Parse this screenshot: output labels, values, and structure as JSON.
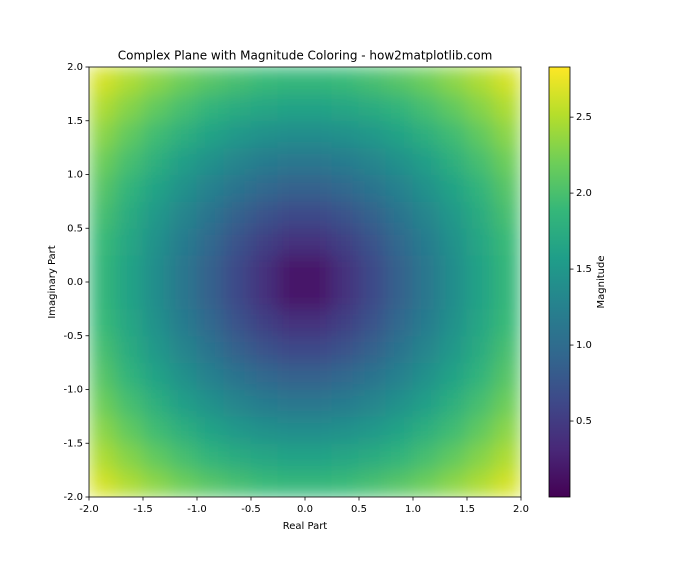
{
  "chart_data": {
    "type": "heatmap",
    "title": "Complex Plane with Magnitude Coloring - how2matplotlib.com",
    "xlabel": "Real Part",
    "ylabel": "Imaginary Part",
    "x": [
      -1.875,
      -1.625,
      -1.375,
      -1.125,
      -0.875,
      -0.625,
      -0.375,
      -0.125,
      0.125,
      0.375,
      0.625,
      0.875,
      1.125,
      1.375,
      1.625,
      1.875
    ],
    "y": [
      -1.875,
      -1.625,
      -1.375,
      -1.125,
      -0.875,
      -0.625,
      -0.375,
      -0.125,
      0.125,
      0.375,
      0.625,
      0.875,
      1.125,
      1.375,
      1.625,
      1.875
    ],
    "z": [
      [
        2.65,
        2.48,
        2.33,
        2.19,
        2.07,
        1.98,
        1.91,
        1.88,
        1.88,
        1.91,
        1.98,
        2.07,
        2.19,
        2.33,
        2.48,
        2.65
      ],
      [
        2.48,
        2.3,
        2.13,
        1.98,
        1.85,
        1.74,
        1.67,
        1.63,
        1.63,
        1.67,
        1.74,
        1.85,
        1.98,
        2.13,
        2.3,
        2.48
      ],
      [
        2.33,
        2.13,
        1.94,
        1.78,
        1.63,
        1.51,
        1.43,
        1.38,
        1.38,
        1.43,
        1.51,
        1.63,
        1.78,
        1.94,
        2.13,
        2.33
      ],
      [
        2.19,
        1.98,
        1.78,
        1.59,
        1.43,
        1.29,
        1.19,
        1.13,
        1.13,
        1.19,
        1.29,
        1.43,
        1.59,
        1.78,
        1.98,
        2.19
      ],
      [
        2.07,
        1.85,
        1.63,
        1.43,
        1.24,
        1.08,
        0.95,
        0.88,
        0.88,
        0.95,
        1.08,
        1.24,
        1.43,
        1.63,
        1.85,
        2.07
      ],
      [
        1.98,
        1.74,
        1.51,
        1.29,
        1.08,
        0.88,
        0.73,
        0.64,
        0.64,
        0.73,
        0.88,
        1.08,
        1.29,
        1.51,
        1.74,
        1.98
      ],
      [
        1.91,
        1.67,
        1.43,
        1.19,
        0.95,
        0.73,
        0.53,
        0.4,
        0.4,
        0.53,
        0.73,
        0.95,
        1.19,
        1.43,
        1.67,
        1.91
      ],
      [
        1.88,
        1.63,
        1.38,
        1.13,
        0.88,
        0.64,
        0.4,
        0.18,
        0.18,
        0.4,
        0.64,
        0.88,
        1.13,
        1.38,
        1.63,
        1.88
      ],
      [
        1.88,
        1.63,
        1.38,
        1.13,
        0.88,
        0.64,
        0.4,
        0.18,
        0.18,
        0.4,
        0.64,
        0.88,
        1.13,
        1.38,
        1.63,
        1.88
      ],
      [
        1.91,
        1.67,
        1.43,
        1.19,
        0.95,
        0.73,
        0.53,
        0.4,
        0.4,
        0.53,
        0.73,
        0.95,
        1.19,
        1.43,
        1.67,
        1.91
      ],
      [
        1.98,
        1.74,
        1.51,
        1.29,
        1.08,
        0.88,
        0.73,
        0.64,
        0.64,
        0.73,
        0.88,
        1.08,
        1.29,
        1.51,
        1.74,
        1.98
      ],
      [
        2.07,
        1.85,
        1.63,
        1.43,
        1.24,
        1.08,
        0.95,
        0.88,
        0.88,
        0.95,
        1.08,
        1.24,
        1.43,
        1.63,
        1.85,
        2.07
      ],
      [
        2.19,
        1.98,
        1.78,
        1.59,
        1.43,
        1.29,
        1.19,
        1.13,
        1.13,
        1.19,
        1.29,
        1.43,
        1.59,
        1.78,
        1.98,
        2.19
      ],
      [
        2.33,
        2.13,
        1.94,
        1.78,
        1.63,
        1.51,
        1.43,
        1.38,
        1.38,
        1.43,
        1.51,
        1.63,
        1.78,
        1.94,
        2.13,
        2.33
      ],
      [
        2.48,
        2.3,
        2.13,
        1.98,
        1.85,
        1.74,
        1.67,
        1.63,
        1.63,
        1.67,
        1.74,
        1.85,
        1.98,
        2.13,
        2.3,
        2.48
      ],
      [
        2.65,
        2.48,
        2.33,
        2.19,
        2.07,
        1.98,
        1.91,
        1.88,
        1.88,
        1.91,
        1.98,
        2.07,
        2.19,
        2.33,
        2.48,
        2.65
      ]
    ],
    "xlim": [
      -2,
      2
    ],
    "ylim": [
      -2,
      2
    ],
    "xticks": [
      {
        "value": -2,
        "label": "-2.0"
      },
      -1.5,
      {
        "value": -1,
        "label": "-1.0"
      },
      -0.5,
      {
        "value": 0,
        "label": "0.0"
      },
      0.5,
      {
        "value": 1,
        "label": "1.0"
      },
      1.5,
      {
        "value": 2,
        "label": "2.0"
      }
    ],
    "yticks": [
      {
        "value": -2,
        "label": "-2.0"
      },
      -1.5,
      {
        "value": -1,
        "label": "-1.0"
      },
      -0.5,
      {
        "value": 0,
        "label": "0.0"
      },
      0.5,
      {
        "value": 1,
        "label": "1.0"
      },
      1.5,
      {
        "value": 2,
        "label": "2.0"
      }
    ],
    "colorbar": {
      "label": "Magnitude",
      "colormap": "viridis",
      "lim": [
        0,
        2.83
      ],
      "ticks": [
        0.5,
        {
          "value": 1,
          "label": "1.0"
        },
        1.5,
        {
          "value": 2,
          "label": "2.0"
        },
        2.5
      ]
    }
  }
}
